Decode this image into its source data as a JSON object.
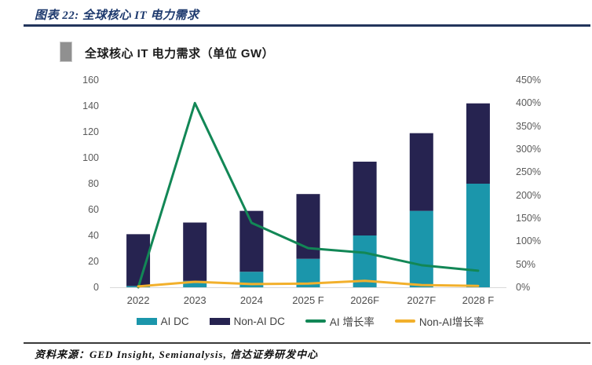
{
  "header": {
    "title": "图表 22: 全球核心 IT 电力需求"
  },
  "figure": {
    "title": "全球核心 IT 电力需求（单位 GW）",
    "bullet_color": "#909090"
  },
  "chart_data": {
    "type": "bar",
    "subtype": "stacked-bar-with-dual-axis-lines",
    "title": "全球核心 IT 电力需求（单位 GW）",
    "categories": [
      "2022",
      "2023",
      "2024",
      "2025 F",
      "2026F",
      "2027F",
      "2028 F"
    ],
    "series": [
      {
        "name": "AI DC",
        "type": "bar",
        "axis": "left",
        "color": "#1b96ab",
        "values": [
          1,
          5,
          12,
          22,
          40,
          59,
          80
        ]
      },
      {
        "name": "Non-AI DC",
        "type": "bar",
        "axis": "left",
        "color": "#262350",
        "values": [
          40,
          45,
          47,
          50,
          57,
          60,
          62
        ]
      },
      {
        "name": "AI 增长率",
        "type": "line",
        "axis": "right",
        "color": "#128756",
        "values": [
          0,
          400,
          140,
          85,
          75,
          48,
          36
        ]
      },
      {
        "name": "Non-AI增长率",
        "type": "line",
        "axis": "right",
        "color": "#f2b02c",
        "values": [
          2,
          12,
          7,
          8,
          14,
          5,
          3
        ]
      }
    ],
    "left_axis": {
      "min": 0,
      "max": 160,
      "tick_step": 20,
      "ticks": [
        0,
        20,
        40,
        60,
        80,
        100,
        120,
        140,
        160
      ]
    },
    "right_axis": {
      "min": 0,
      "max": 450,
      "tick_step": 50,
      "ticks": [
        "0%",
        "50%",
        "100%",
        "150%",
        "200%",
        "250%",
        "300%",
        "350%",
        "400%",
        "450%"
      ]
    },
    "grid": "none",
    "legend_position": "bottom",
    "baseline_color": "#d9d9d9",
    "axis_text_color": "#5a5a5a"
  },
  "footer": {
    "source": "资料来源：GED Insight, Semianalysis, 信达证券研发中心"
  }
}
